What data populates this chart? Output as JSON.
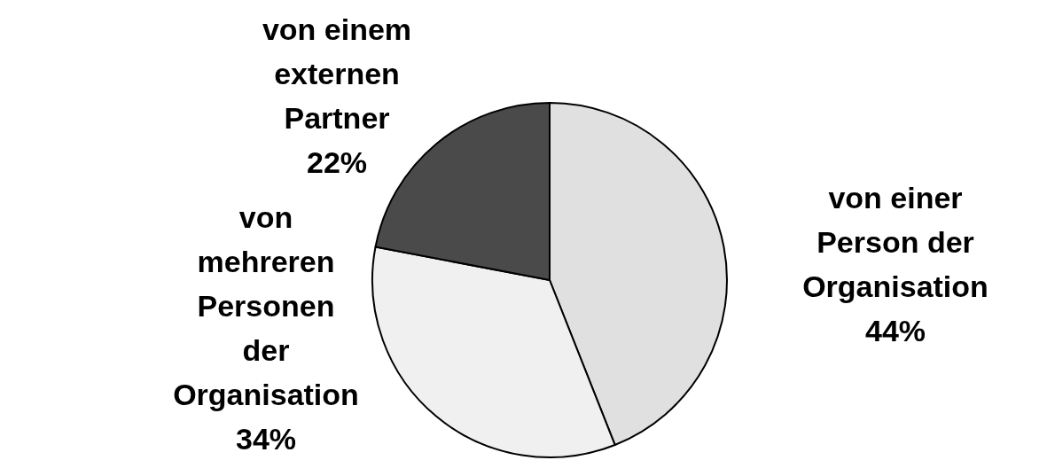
{
  "chart_data": {
    "type": "pie",
    "categories": [
      "von einer Person der Organisation",
      "von mehreren Personen der Organisation",
      "von einem externen Partner"
    ],
    "values": [
      44,
      34,
      22
    ],
    "colors": [
      "#e0e0e0",
      "#f0f0f0",
      "#4a4a4a"
    ],
    "value_labels": [
      "44%",
      "34%",
      "22%"
    ]
  }
}
